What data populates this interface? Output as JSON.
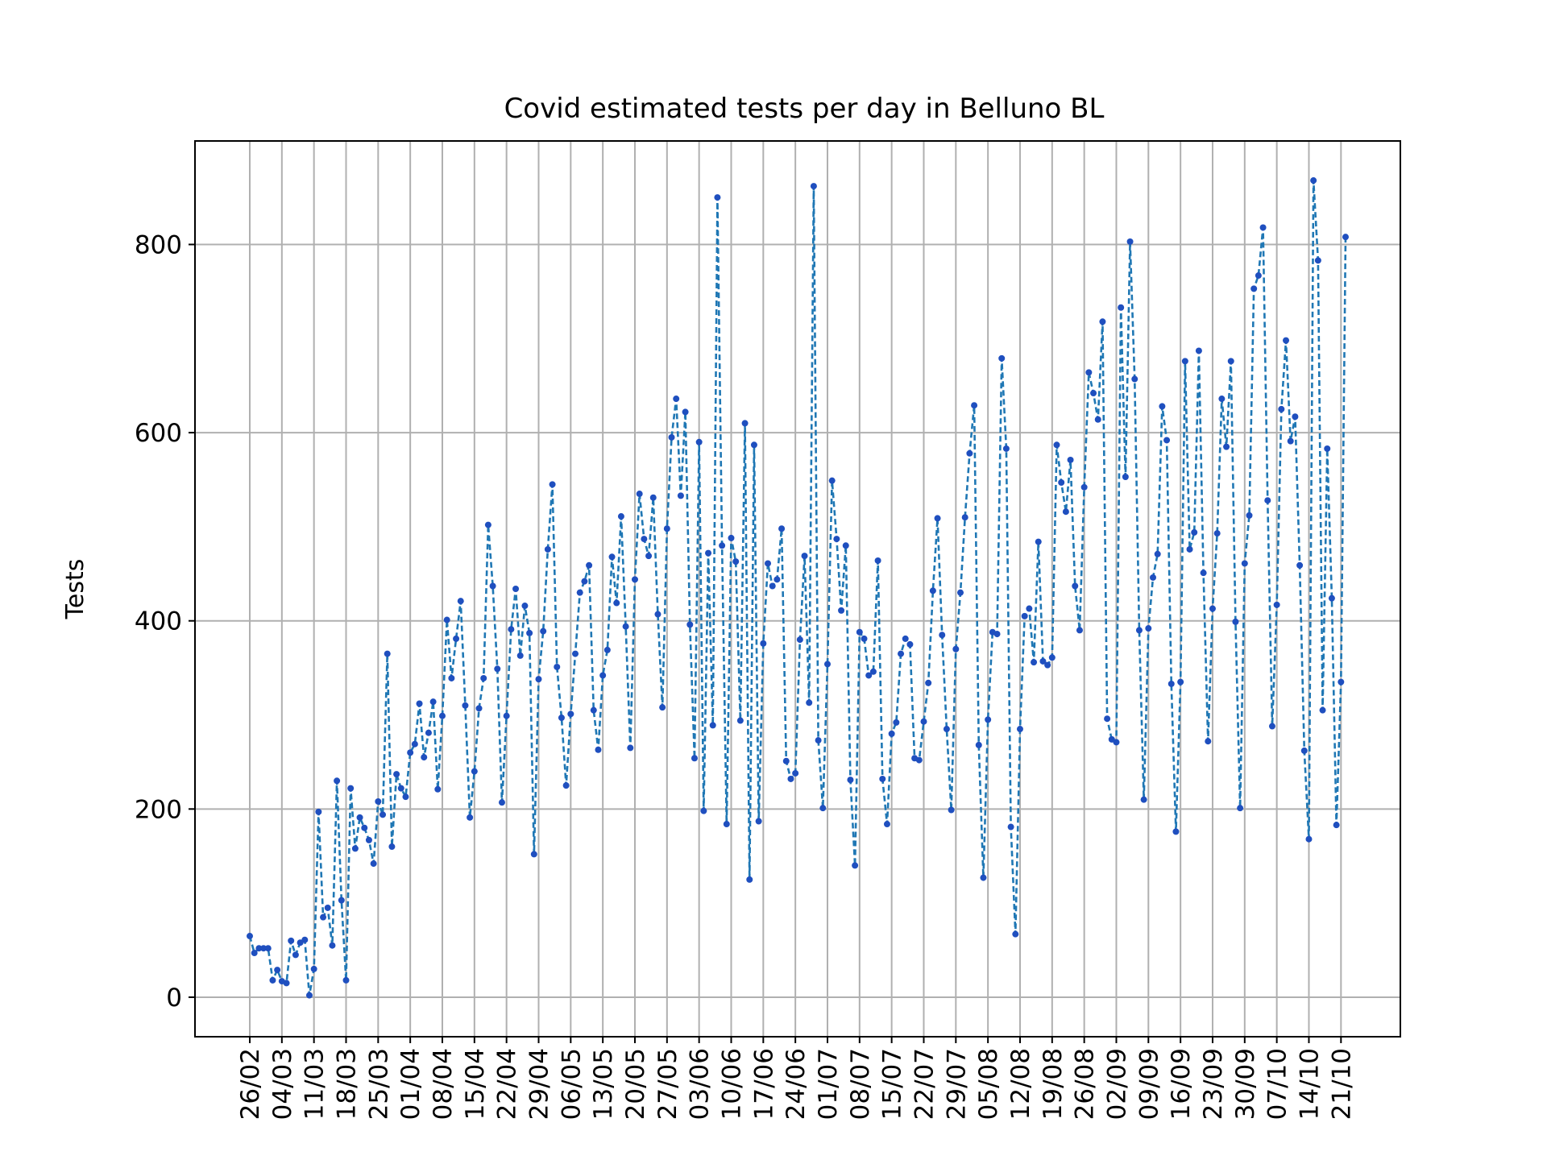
{
  "chart_data": {
    "type": "line",
    "title": "Covid estimated tests per day in Belluno BL",
    "xlabel": "",
    "ylabel": "Tests",
    "ylim": [
      -42,
      910
    ],
    "yticks": [
      0,
      200,
      400,
      600,
      800
    ],
    "xtick_labels": [
      "26/02",
      "04/03",
      "11/03",
      "18/03",
      "25/03",
      "01/04",
      "08/04",
      "15/04",
      "22/04",
      "29/04",
      "06/05",
      "13/05",
      "20/05",
      "27/05",
      "03/06",
      "10/06",
      "17/06",
      "24/06",
      "01/07",
      "08/07",
      "15/07",
      "22/07",
      "29/07",
      "05/08",
      "12/08",
      "19/08",
      "26/08",
      "02/09",
      "09/09",
      "16/09",
      "23/09",
      "30/09",
      "07/10",
      "14/10",
      "21/10"
    ],
    "grid": true,
    "line_color": "#1f77b4",
    "marker_color": "#1f4fbf",
    "series": [
      {
        "values": [
          65,
          47,
          52,
          52,
          52,
          18,
          29,
          17,
          15,
          60,
          45,
          58,
          61,
          2,
          30,
          197,
          85,
          95,
          55,
          230,
          103,
          18,
          222,
          158,
          191,
          180,
          167,
          142,
          208,
          194,
          365,
          160,
          237,
          222,
          213,
          260,
          269,
          312,
          255,
          281,
          314,
          221,
          299,
          401,
          339,
          381,
          421,
          310,
          191,
          240,
          307,
          339,
          502,
          437,
          349,
          207,
          299,
          391,
          434,
          363,
          416,
          387,
          152,
          338,
          389,
          476,
          545,
          351,
          297,
          225,
          301,
          365,
          430,
          442,
          459,
          305,
          263,
          342,
          369,
          468,
          419,
          511,
          394,
          265,
          444,
          535,
          487,
          469,
          531,
          407,
          308,
          498,
          595,
          636,
          533,
          622,
          396,
          254,
          590,
          198,
          472,
          289,
          850,
          480,
          184,
          488,
          463,
          294,
          610,
          125,
          587,
          187,
          376,
          461,
          437,
          444,
          498,
          251,
          232,
          238,
          380,
          469,
          313,
          862,
          273,
          201,
          354,
          549,
          487,
          411,
          480,
          231,
          140,
          388,
          381,
          342,
          346,
          464,
          232,
          184,
          280,
          292,
          365,
          381,
          375,
          254,
          252,
          293,
          334,
          432,
          509,
          385,
          285,
          199,
          370,
          430,
          510,
          578,
          629,
          268,
          127,
          295,
          388,
          386,
          679,
          583,
          181,
          67,
          285,
          405,
          413,
          356,
          484,
          357,
          353,
          361,
          587,
          547,
          516,
          571,
          437,
          390,
          542,
          664,
          642,
          614,
          718,
          296,
          274,
          271,
          733,
          553,
          803,
          657,
          390,
          210,
          392,
          446,
          471,
          628,
          592,
          333,
          176,
          335,
          676,
          476,
          494,
          687,
          451,
          272,
          413,
          493,
          636,
          585,
          676,
          399,
          201,
          461,
          512,
          753,
          767,
          818,
          528,
          288,
          417,
          625,
          698,
          591,
          617,
          459,
          262,
          168,
          868,
          783,
          305,
          583,
          424,
          183,
          335,
          808
        ]
      }
    ]
  }
}
